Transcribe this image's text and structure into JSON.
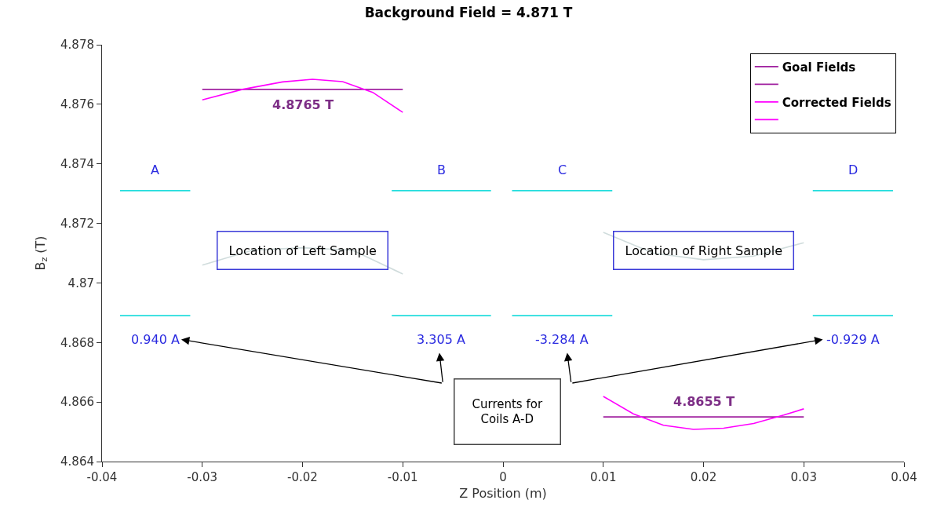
{
  "chart_data": {
    "type": "line",
    "title": "Background Field = 4.871 T",
    "xlabel": "Z Position (m)",
    "ylabel": "B$_{z}$ (T)",
    "xlim": [
      -0.04,
      0.04
    ],
    "xticks": [
      -0.04,
      -0.03,
      -0.02,
      -0.01,
      0,
      0.01,
      0.02,
      0.03,
      0.04
    ],
    "ylim": [
      4.864,
      4.878
    ],
    "yticks": [
      4.864,
      4.866,
      4.868,
      4.87,
      4.872,
      4.874,
      4.876,
      4.878
    ],
    "legend": "top right",
    "marker": "none",
    "line_style": "solid",
    "series": [
      {
        "name": "Goal Fields",
        "color": "#a0209f",
        "x": [
          -0.03,
          -0.01
        ],
        "values": [
          4.8765,
          4.8765
        ]
      },
      {
        "color": "#a0209f",
        "x": [
          0.01,
          0.03
        ],
        "values": [
          4.8655,
          4.8655
        ]
      },
      {
        "name": "Corrected Fields",
        "color": "#ff00ff",
        "x": [
          -0.03,
          -0.026,
          -0.022,
          -0.019,
          -0.016,
          -0.013,
          -0.01
        ],
        "values": [
          4.87615,
          4.8765,
          4.87675,
          4.87684,
          4.87676,
          4.8764,
          4.87573
        ]
      },
      {
        "color": "#ff00ff",
        "x": [
          0.01,
          0.013,
          0.016,
          0.019,
          0.022,
          0.025,
          0.028,
          0.03
        ],
        "values": [
          4.86619,
          4.8656,
          4.86522,
          4.86508,
          4.86512,
          4.86528,
          4.86556,
          4.86577
        ]
      },
      {
        "color": "#d0dcdc",
        "x": [
          -0.03,
          -0.025,
          -0.02,
          -0.015,
          -0.01
        ],
        "values": [
          4.8706,
          4.8711,
          4.87118,
          4.8711,
          4.8703
        ]
      },
      {
        "color": "#d0dcdc",
        "x": [
          0.01,
          0.015,
          0.02,
          0.025,
          0.03
        ],
        "values": [
          4.8717,
          4.871,
          4.87078,
          4.8709,
          4.87135
        ]
      },
      {
        "color": "#22dddd",
        "x": [
          -0.0382,
          -0.0312
        ],
        "values": [
          4.8731,
          4.8731
        ]
      },
      {
        "color": "#22dddd",
        "x": [
          -0.0382,
          -0.0312
        ],
        "values": [
          4.8689,
          4.8689
        ]
      },
      {
        "color": "#22dddd",
        "x": [
          -0.0111,
          -0.0012
        ],
        "values": [
          4.8731,
          4.8731
        ]
      },
      {
        "color": "#22dddd",
        "x": [
          -0.0111,
          -0.0012
        ],
        "values": [
          4.8689,
          4.8689
        ]
      },
      {
        "color": "#22dddd",
        "x": [
          0.0009,
          0.0109
        ],
        "values": [
          4.8731,
          4.8731
        ]
      },
      {
        "color": "#22dddd",
        "x": [
          0.0009,
          0.0109
        ],
        "values": [
          4.8689,
          4.8689
        ]
      },
      {
        "color": "#22dddd",
        "x": [
          0.0309,
          0.0389
        ],
        "values": [
          4.8731,
          4.8731
        ]
      },
      {
        "color": "#22dddd",
        "x": [
          0.0309,
          0.0389
        ],
        "values": [
          4.8689,
          4.8689
        ]
      }
    ],
    "annotations": [
      "4.8765 T",
      "4.8655 T",
      "A",
      "B",
      "C",
      "D",
      "0.940 A",
      "3.305 A",
      "-3.284 A",
      "-0.929 A",
      "Location of Left Sample",
      "Location of Right Sample",
      "Currents for Coils A-D"
    ]
  }
}
